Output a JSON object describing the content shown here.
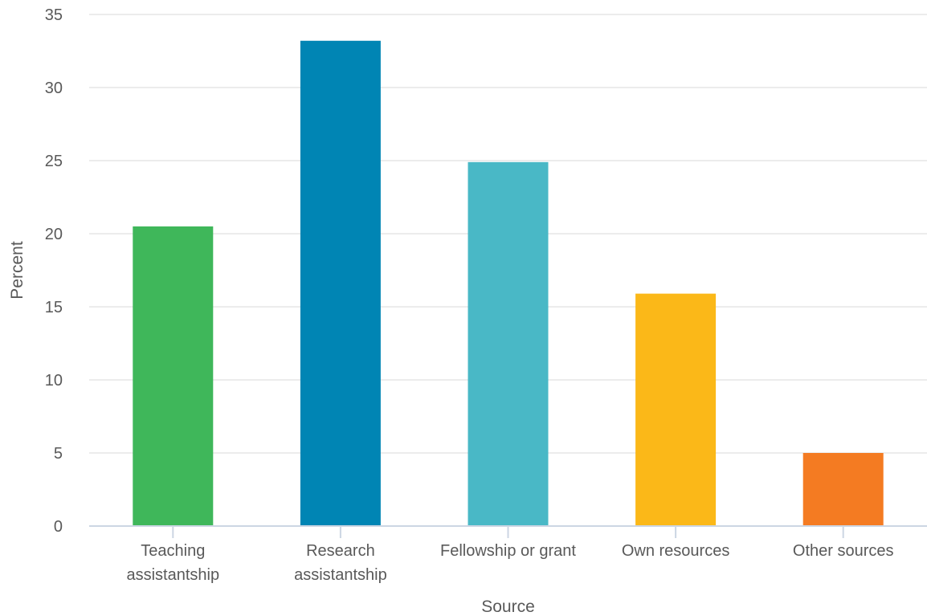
{
  "chart_data": {
    "type": "bar",
    "categories": [
      [
        "Teaching",
        "assistantship"
      ],
      [
        "Research",
        "assistantship"
      ],
      [
        "Fellowship or grant"
      ],
      [
        "Own resources"
      ],
      [
        "Other sources"
      ]
    ],
    "values": [
      20.5,
      33.2,
      24.9,
      15.9,
      5.0
    ],
    "colors": [
      "#3fb75a",
      "#0085b4",
      "#49b8c6",
      "#fbb818",
      "#f47b22"
    ],
    "title": "",
    "xlabel": "Source",
    "ylabel": "Percent",
    "ylim": [
      0,
      35
    ],
    "yticks": [
      0,
      5,
      10,
      15,
      20,
      25,
      30,
      35
    ],
    "grid": true,
    "legend": "none"
  }
}
